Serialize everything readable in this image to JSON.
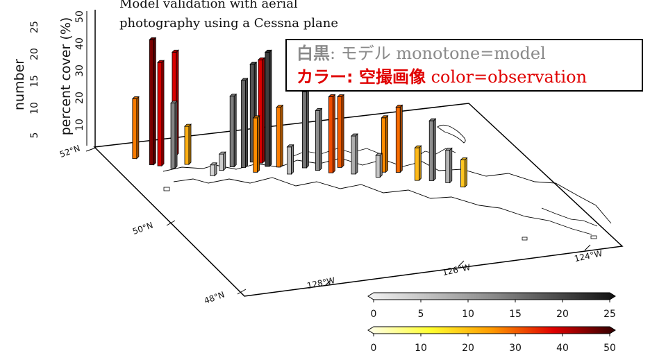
{
  "caption": {
    "line1": "Model validation with aerial",
    "line2": "photography using a Cessna plane"
  },
  "legend_box": {
    "line1_bold": "白黒",
    "line1_rest": ": モデル monotone=model",
    "line2_bold": "カラー",
    "line2_mid": ": 空撮画像",
    "line2_rest": " color=observation"
  },
  "colors": {
    "model_gray_light": "#e6e6e6",
    "model_gray_dark": "#1e1e1e",
    "obs_yellow": "#ffff40",
    "obs_orange": "#ff8c00",
    "obs_red": "#e00000",
    "obs_darkred": "#4a0000",
    "legend_red": "#e00000"
  },
  "chart_data": {
    "type": "bar3d",
    "z_axis_labels": {
      "number_title": "number",
      "number_ticks": [
        "5",
        "10",
        "15",
        "20",
        "25"
      ],
      "percent_title": "percent cover (%)",
      "percent_ticks": [
        "10",
        "20",
        "30",
        "40",
        "50"
      ]
    },
    "lat_labels": [
      "52°N",
      "50°N",
      "48°N"
    ],
    "lon_labels": [
      "128°W",
      "126°W",
      "124°W"
    ],
    "colorbar_model": {
      "ticks": [
        "0",
        "5",
        "10",
        "15",
        "20",
        "25"
      ],
      "range": [
        0,
        25
      ]
    },
    "colorbar_obs": {
      "ticks": [
        "0",
        "10",
        "20",
        "30",
        "40",
        "50"
      ],
      "range": [
        0,
        50
      ]
    },
    "bars": [
      {
        "lon": -128.6,
        "lat": 51.6,
        "kind": "obs",
        "value": 22
      },
      {
        "lon": -128.45,
        "lat": 51.4,
        "kind": "obs",
        "value": 46
      },
      {
        "lon": -128.35,
        "lat": 51.35,
        "kind": "obs",
        "value": 38
      },
      {
        "lon": -128.2,
        "lat": 51.25,
        "kind": "model",
        "value": 12
      },
      {
        "lon": -128.0,
        "lat": 51.55,
        "kind": "obs",
        "value": 38
      },
      {
        "lon": -127.95,
        "lat": 51.3,
        "kind": "obs",
        "value": 14
      },
      {
        "lon": -127.75,
        "lat": 50.95,
        "kind": "model",
        "value": 2
      },
      {
        "lon": -127.55,
        "lat": 51.05,
        "kind": "model",
        "value": 3
      },
      {
        "lon": -127.35,
        "lat": 51.1,
        "kind": "model",
        "value": 13
      },
      {
        "lon": -127.2,
        "lat": 51.05,
        "kind": "model",
        "value": 16
      },
      {
        "lon": -127.1,
        "lat": 50.9,
        "kind": "obs",
        "value": 20
      },
      {
        "lon": -127.0,
        "lat": 51.15,
        "kind": "model",
        "value": 18
      },
      {
        "lon": -126.9,
        "lat": 51.1,
        "kind": "obs",
        "value": 38
      },
      {
        "lon": -126.85,
        "lat": 51.0,
        "kind": "model",
        "value": 21
      },
      {
        "lon": -126.7,
        "lat": 50.95,
        "kind": "obs",
        "value": 22
      },
      {
        "lon": -126.65,
        "lat": 50.75,
        "kind": "model",
        "value": 5
      },
      {
        "lon": -126.35,
        "lat": 50.85,
        "kind": "model",
        "value": 14
      },
      {
        "lon": -126.2,
        "lat": 50.75,
        "kind": "model",
        "value": 11
      },
      {
        "lon": -126.05,
        "lat": 50.65,
        "kind": "obs",
        "value": 28
      },
      {
        "lon": -125.85,
        "lat": 50.75,
        "kind": "obs",
        "value": 26
      },
      {
        "lon": -125.75,
        "lat": 50.55,
        "kind": "model",
        "value": 7
      },
      {
        "lon": -125.45,
        "lat": 50.4,
        "kind": "model",
        "value": 4
      },
      {
        "lon": -125.3,
        "lat": 50.5,
        "kind": "obs",
        "value": 20
      },
      {
        "lon": -125.1,
        "lat": 50.45,
        "kind": "obs",
        "value": 24
      },
      {
        "lon": -124.95,
        "lat": 50.2,
        "kind": "obs",
        "value": 12
      },
      {
        "lon": -124.75,
        "lat": 50.15,
        "kind": "model",
        "value": 11
      },
      {
        "lon": -124.55,
        "lat": 50.05,
        "kind": "model",
        "value": 6
      },
      {
        "lon": -124.4,
        "lat": 49.9,
        "kind": "obs",
        "value": 10
      }
    ]
  }
}
